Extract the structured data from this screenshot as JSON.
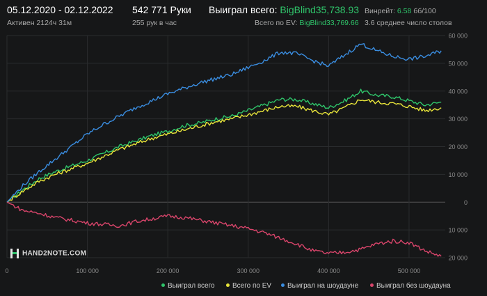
{
  "header": {
    "date_range": "05.12.2020 - 02.12.2022",
    "active_time": "Активен 2124ч 31м",
    "hands": "542 771 Руки",
    "hands_per_hour": "255 рук в час",
    "won_total_label": "Выиграл всего:",
    "won_total_value": "BigBlind35,738.93",
    "won_ev_label": "Всего по EV:",
    "won_ev_value": "BigBlind33,769.66",
    "winrate_label": "Винрейт:",
    "winrate_value": "6.58",
    "winrate_extra": "бб/100",
    "tables": "3.6 среднее число столов"
  },
  "logo": {
    "text": "HAND2NOTE.COM"
  },
  "colors": {
    "background": "#161718",
    "won_total": "#2fc46a",
    "ev": "#e8e53a",
    "showdown": "#3a8de0",
    "non_showdown": "#d9456b",
    "grid": "#2a2c2e",
    "axis_text": "#8a8a8a"
  },
  "chart_data": {
    "type": "line",
    "xlim": [
      0,
      545000
    ],
    "ylim": [
      -20000,
      60000
    ],
    "y_axis_position": "right",
    "x_ticks": [
      0,
      100000,
      200000,
      300000,
      400000,
      500000
    ],
    "x_tick_labels": [
      "0",
      "100 000",
      "200 000",
      "300 000",
      "400 000",
      "500 000"
    ],
    "y_ticks": [
      60000,
      50000,
      40000,
      30000,
      20000,
      10000,
      0,
      -10000,
      -20000
    ],
    "y_tick_labels": [
      "60 000",
      "50 000",
      "40 000",
      "30 000",
      "20 000",
      "10 000",
      "0",
      "10 000",
      "20 000"
    ],
    "grid": true,
    "legend_position": "bottom-right",
    "x": [
      0,
      20000,
      40000,
      60000,
      80000,
      100000,
      120000,
      140000,
      160000,
      180000,
      200000,
      220000,
      240000,
      260000,
      280000,
      300000,
      320000,
      340000,
      360000,
      380000,
      400000,
      420000,
      440000,
      460000,
      480000,
      500000,
      520000,
      540000
    ],
    "series": [
      {
        "name": "Выиграл всего",
        "color": "#2fc46a",
        "values": [
          0,
          4500,
          8500,
          11000,
          13000,
          15000,
          17500,
          20000,
          22000,
          24000,
          25500,
          27500,
          28500,
          30000,
          31000,
          33000,
          35000,
          37000,
          37000,
          35500,
          34000,
          36500,
          40000,
          38500,
          38000,
          36500,
          35000,
          36000
        ]
      },
      {
        "name": "Всего по EV",
        "color": "#e8e53a",
        "values": [
          0,
          4000,
          7500,
          10000,
          12000,
          14000,
          16500,
          19000,
          21000,
          23000,
          24500,
          26000,
          27500,
          29000,
          30000,
          31500,
          33000,
          34500,
          34500,
          33000,
          31500,
          34000,
          37000,
          36000,
          35500,
          34500,
          33000,
          34000
        ]
      },
      {
        "name": "Выиграл на шоудауне",
        "color": "#3a8de0",
        "values": [
          0,
          6000,
          11000,
          15500,
          20000,
          24500,
          28000,
          31000,
          34000,
          36500,
          39000,
          41000,
          43000,
          44500,
          46000,
          48500,
          51000,
          54000,
          53500,
          51000,
          49000,
          53000,
          57000,
          54500,
          52500,
          51500,
          52500,
          54500
        ]
      },
      {
        "name": "Выиграл без шоудауна",
        "color": "#d9456b",
        "values": [
          0,
          -3000,
          -4000,
          -5500,
          -6500,
          -7500,
          -8000,
          -8500,
          -7000,
          -6000,
          -5000,
          -5500,
          -6500,
          -7500,
          -8500,
          -9500,
          -11000,
          -13000,
          -15000,
          -17500,
          -18500,
          -18000,
          -17000,
          -15000,
          -14000,
          -14500,
          -17500,
          -19500
        ]
      }
    ]
  }
}
